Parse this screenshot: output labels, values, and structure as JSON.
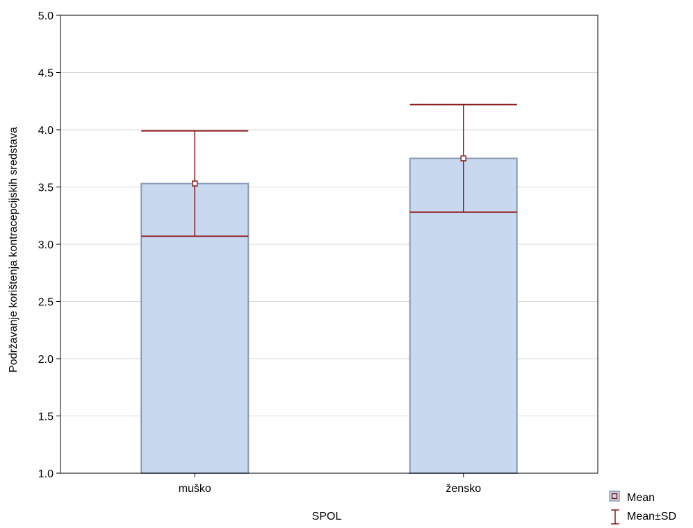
{
  "chart_data": {
    "type": "bar",
    "categories": [
      "muško",
      "žensko"
    ],
    "series": [
      {
        "name": "Mean",
        "values": [
          3.53,
          3.75
        ]
      }
    ],
    "error_bars": {
      "name": "Mean±SD",
      "sd": [
        0.46,
        0.47
      ]
    },
    "xlabel": "SPOL",
    "ylabel": "Podržavanje korištenja kontracepcijskih sredstava",
    "ylim": [
      1.0,
      5.0
    ],
    "yticks": [
      "1.0",
      "1.5",
      "2.0",
      "2.5",
      "3.0",
      "3.5",
      "4.0",
      "4.5",
      "5.0"
    ],
    "grid": true,
    "legend": {
      "placement": "bottom-right",
      "items": [
        "Mean",
        "Mean±SD"
      ]
    },
    "colors": {
      "bar_fill": "#c7d8ef",
      "bar_stroke": "#8a9bb8",
      "error": "#8b1a1a",
      "grid": "#d9d9d9",
      "axis": "#000000"
    }
  }
}
